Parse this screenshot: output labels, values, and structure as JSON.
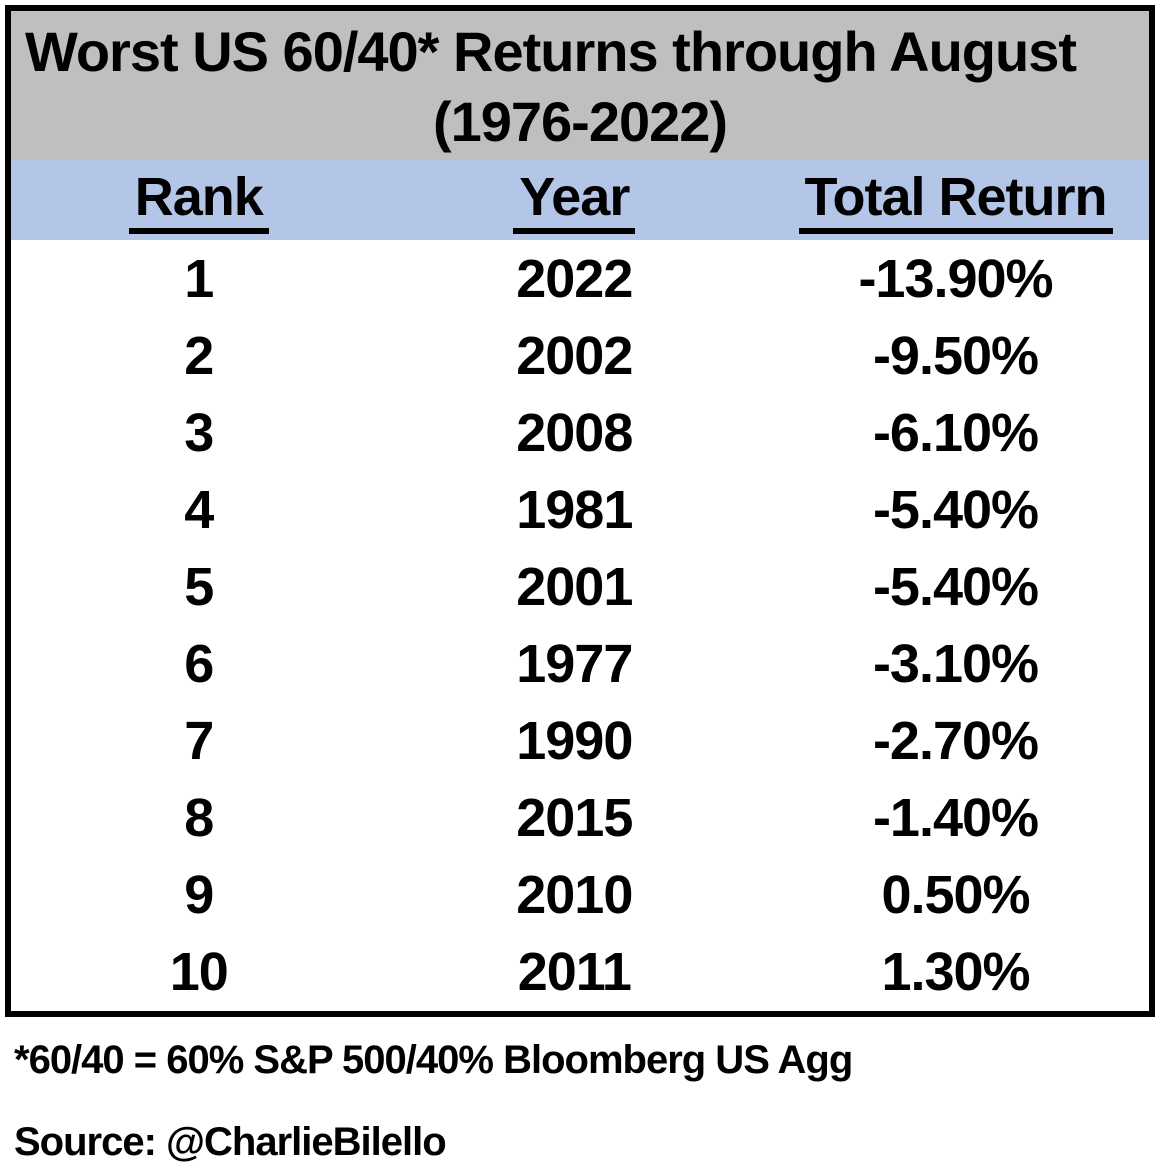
{
  "title": {
    "line1": "Worst US 60/40* Returns through August",
    "line2": "(1976-2022)"
  },
  "table": {
    "headers": [
      "Rank",
      "Year",
      "Total Return"
    ],
    "rows": [
      {
        "rank": "1",
        "year": "2022",
        "total_return": "-13.90%"
      },
      {
        "rank": "2",
        "year": "2002",
        "total_return": "-9.50%"
      },
      {
        "rank": "3",
        "year": "2008",
        "total_return": "-6.10%"
      },
      {
        "rank": "4",
        "year": "1981",
        "total_return": "-5.40%"
      },
      {
        "rank": "5",
        "year": "2001",
        "total_return": "-5.40%"
      },
      {
        "rank": "6",
        "year": "1977",
        "total_return": "-3.10%"
      },
      {
        "rank": "7",
        "year": "1990",
        "total_return": "-2.70%"
      },
      {
        "rank": "8",
        "year": "2015",
        "total_return": "-1.40%"
      },
      {
        "rank": "9",
        "year": "2010",
        "total_return": "0.50%"
      },
      {
        "rank": "10",
        "year": "2011",
        "total_return": "1.30%"
      }
    ]
  },
  "footnote": "*60/40 = 60% S&P 500/40% Bloomberg US Agg",
  "source": "Source: @CharlieBilello",
  "colors": {
    "title_bg": "#BFBFBF",
    "header_bg": "#B4C6E7",
    "border": "#000000",
    "text": "#000000",
    "page_bg": "#FFFFFF"
  },
  "chart_data": {
    "type": "table",
    "title": "Worst US 60/40* Returns through August (1976-2022)",
    "columns": [
      "Rank",
      "Year",
      "Total Return"
    ],
    "rows": [
      {
        "rank": 1,
        "year": 2022,
        "total_return_pct": -13.9
      },
      {
        "rank": 2,
        "year": 2002,
        "total_return_pct": -9.5
      },
      {
        "rank": 3,
        "year": 2008,
        "total_return_pct": -6.1
      },
      {
        "rank": 4,
        "year": 1981,
        "total_return_pct": -5.4
      },
      {
        "rank": 5,
        "year": 2001,
        "total_return_pct": -5.4
      },
      {
        "rank": 6,
        "year": 1977,
        "total_return_pct": -3.1
      },
      {
        "rank": 7,
        "year": 1990,
        "total_return_pct": -2.7
      },
      {
        "rank": 8,
        "year": 2015,
        "total_return_pct": -1.4
      },
      {
        "rank": 9,
        "year": 2010,
        "total_return_pct": 0.5
      },
      {
        "rank": 10,
        "year": 2011,
        "total_return_pct": 1.3
      }
    ],
    "note": "*60/40 = 60% S&P 500/40% Bloomberg US Agg",
    "source": "Source: @CharlieBilello",
    "layout": {
      "title_band_color": "#BFBFBF",
      "header_band_color": "#B4C6E7",
      "grid": "outer-border-only"
    }
  }
}
